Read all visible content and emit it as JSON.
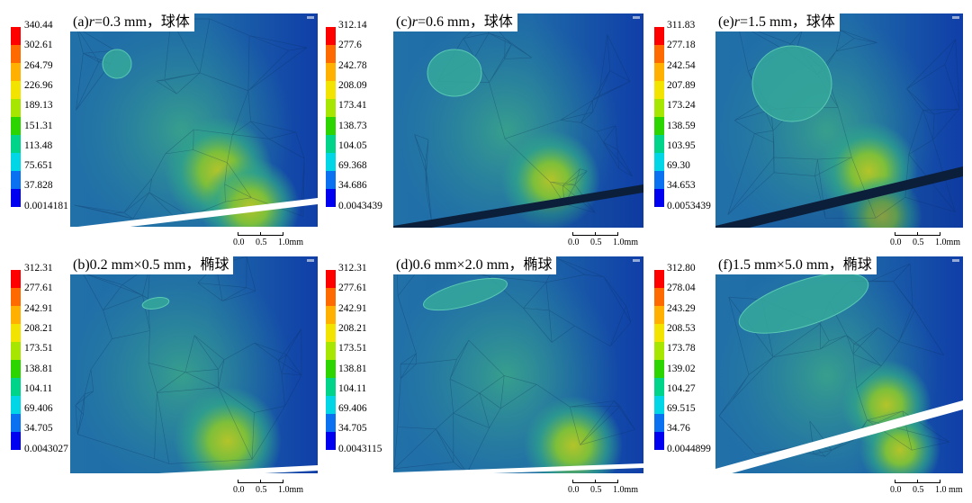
{
  "chart_data": [
    {
      "type": "heatmap",
      "label": {
        "prefix": "(a)",
        "italic": "r",
        "rest": "=0.3 mm，球体"
      },
      "colorbar": [
        "340.44",
        "302.61",
        "264.79",
        "226.96",
        "189.13",
        "151.31",
        "113.48",
        "75.651",
        "37.828",
        "0.0014181"
      ],
      "scalebar": [
        "0.0",
        "0.5",
        "1.0mm"
      ],
      "inclusion": {
        "shape": "sphere",
        "size_mm": [
          0.3
        ]
      }
    },
    {
      "type": "heatmap",
      "label": {
        "prefix": "(b)",
        "italic": "",
        "rest": "0.2 mm×0.5 mm，椭球"
      },
      "colorbar": [
        "312.31",
        "277.61",
        "242.91",
        "208.21",
        "173.51",
        "138.81",
        "104.11",
        "69.406",
        "34.705",
        "0.0043027"
      ],
      "scalebar": [
        "0.0",
        "0.5",
        "1.0mm"
      ],
      "inclusion": {
        "shape": "ellipsoid",
        "size_mm": [
          0.2,
          0.5
        ]
      }
    },
    {
      "type": "heatmap",
      "label": {
        "prefix": "(c)",
        "italic": "r",
        "rest": "=0.6 mm，球体"
      },
      "colorbar": [
        "312.14",
        "277.6",
        "242.78",
        "208.09",
        "173.41",
        "138.73",
        "104.05",
        "69.368",
        "34.686",
        "0.0043439"
      ],
      "scalebar": [
        "0.0",
        "0.5",
        "1.0mm"
      ],
      "inclusion": {
        "shape": "sphere",
        "size_mm": [
          0.6
        ]
      }
    },
    {
      "type": "heatmap",
      "label": {
        "prefix": "(d)",
        "italic": "",
        "rest": "0.6 mm×2.0 mm，椭球"
      },
      "colorbar": [
        "312.31",
        "277.61",
        "242.91",
        "208.21",
        "173.51",
        "138.81",
        "104.11",
        "69.406",
        "34.705",
        "0.0043115"
      ],
      "scalebar": [
        "0.0",
        "0.5",
        "1.0mm"
      ],
      "inclusion": {
        "shape": "ellipsoid",
        "size_mm": [
          0.6,
          2.0
        ]
      }
    },
    {
      "type": "heatmap",
      "label": {
        "prefix": "(e)",
        "italic": "r",
        "rest": "=1.5 mm，球体"
      },
      "colorbar": [
        "311.83",
        "277.18",
        "242.54",
        "207.89",
        "173.24",
        "138.59",
        "103.95",
        "69.30",
        "34.653",
        "0.0053439"
      ],
      "scalebar": [
        "0.0",
        "0.5",
        "1.0mm"
      ],
      "inclusion": {
        "shape": "sphere",
        "size_mm": [
          1.5
        ]
      }
    },
    {
      "type": "heatmap",
      "label": {
        "prefix": "(f)",
        "italic": "",
        "rest": "1.5 mm×5.0 mm，椭球"
      },
      "colorbar": [
        "312.80",
        "278.04",
        "243.29",
        "208.53",
        "173.78",
        "139.02",
        "104.27",
        "69.515",
        "34.76",
        "0.0044899"
      ],
      "scalebar": [
        "0.0",
        "0.5",
        "1.0 mm"
      ],
      "inclusion": {
        "shape": "ellipsoid",
        "size_mm": [
          1.5,
          5.0
        ]
      }
    }
  ],
  "colors": {
    "ramp": [
      "#ff0000",
      "#ff6a00",
      "#ffb000",
      "#f2e400",
      "#a6e600",
      "#2cd400",
      "#00d48a",
      "#00d6e6",
      "#0a72f0",
      "#0000f0"
    ],
    "field_blue": "#1a56b4",
    "field_hot": "#b8c626"
  }
}
